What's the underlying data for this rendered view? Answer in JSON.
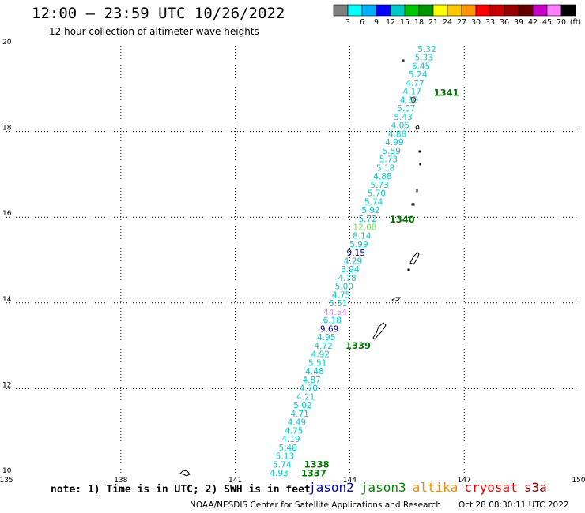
{
  "header": {
    "title": "12:00 – 23:59 UTC 10/26/2022",
    "subtitle": "12 hour collection of altimeter wave heights"
  },
  "color_scale": {
    "colors": [
      "#808080",
      "#00ffff",
      "#00b0ff",
      "#0000ff",
      "#00c8c8",
      "#00c800",
      "#009600",
      "#ffff00",
      "#ffc800",
      "#ff9600",
      "#ff0000",
      "#c80000",
      "#960000",
      "#640000",
      "#c800c8",
      "#ff80ff",
      "#000000"
    ],
    "labels": [
      "3",
      "6",
      "9",
      "12",
      "15",
      "18",
      "21",
      "24",
      "27",
      "30",
      "33",
      "36",
      "39",
      "42",
      "45",
      "70",
      "(ft)"
    ]
  },
  "map": {
    "lon_ticks": [
      "135",
      "138",
      "141",
      "144",
      "147",
      "150"
    ],
    "lat_ticks": [
      "20",
      "18",
      "16",
      "14",
      "12",
      "10"
    ],
    "orbits": [
      {
        "label": "1341",
        "lat": 18.9
      },
      {
        "label": "1340",
        "lat": 15.95
      },
      {
        "label": "1339",
        "lat": 13.0
      },
      {
        "label": "1338",
        "lat": 10.23
      },
      {
        "label": "1337",
        "lat": 10.03
      }
    ],
    "track_heights": [
      "5.32",
      "5.33",
      "6.45",
      "5.24",
      "4.77",
      "4.17",
      "4.30",
      "5.07",
      "5.43",
      "4.05",
      "4.88",
      "4.99",
      "5.59",
      "5.73",
      "5.18",
      "4.88",
      "5.73",
      "5.70",
      "5.74",
      "5.92",
      "5.72",
      "12.08",
      "8.14",
      "5.99",
      "9.15",
      "4.29",
      "3.94",
      "4.78",
      "5.00",
      "4.75",
      "5.51",
      "44.54",
      "6.18",
      "9.69",
      "4.95",
      "4.72",
      "4.92",
      "5.51",
      "4.48",
      "4.87",
      "4.70",
      "4.21",
      "5.02",
      "4.71",
      "4.49",
      "4.75",
      "4.19",
      "5.48",
      "5.13",
      "5.74",
      "4.93"
    ],
    "colors": {
      "track": "#00cccc",
      "orbit": "#007700",
      "grid": "#000000"
    }
  },
  "satellites": [
    {
      "name": "jason2",
      "color": "#0000cc"
    },
    {
      "name": "jason3",
      "color": "#008800"
    },
    {
      "name": "altika",
      "color": "#ff8800"
    },
    {
      "name": "cryosat",
      "color": "#ee0000"
    },
    {
      "name": "s3a",
      "color": "#990000"
    }
  ],
  "footer": {
    "note": "note: 1) Time is in UTC; 2) SWH is in feet",
    "credit": "NOAA/NESDIS Center for Satellite Applications and Research",
    "timestamp": "Oct 28 08:30:11 UTC 2022"
  }
}
